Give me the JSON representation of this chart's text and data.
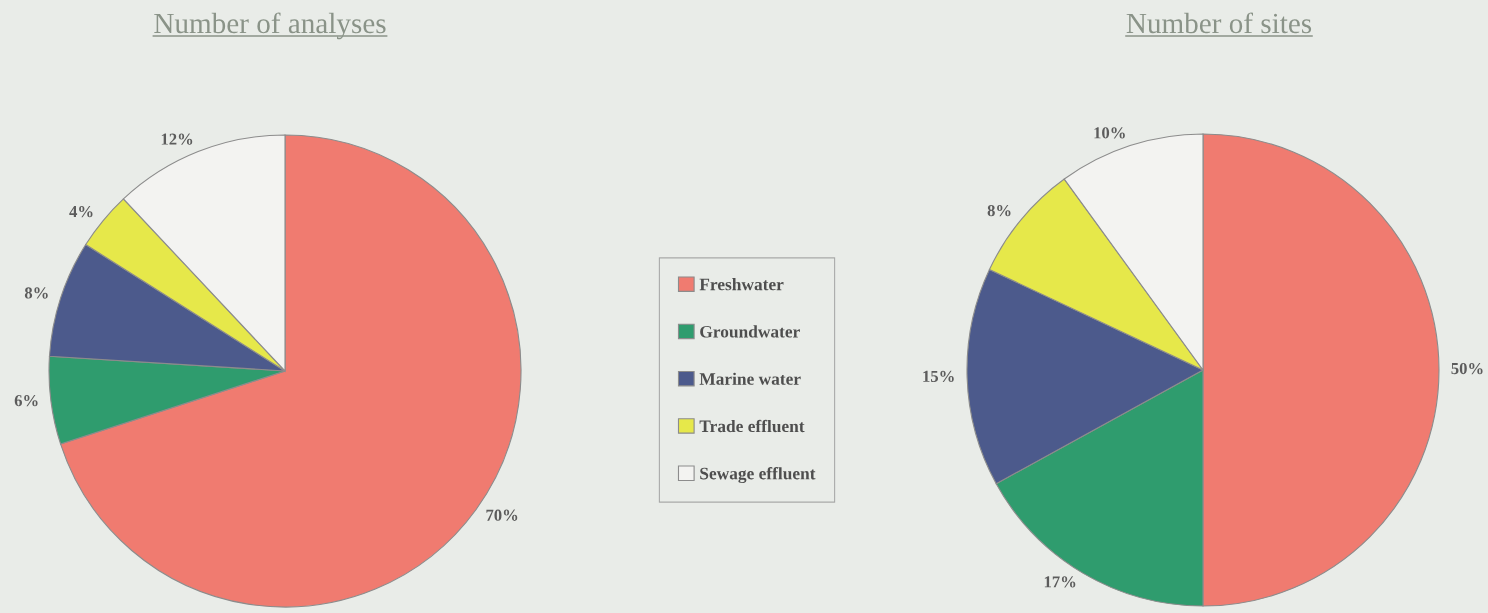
{
  "chart_data": [
    {
      "type": "pie",
      "title": "Number of analyses",
      "categories": [
        "Freshwater",
        "Groundwater",
        "Marine water",
        "Trade effluent",
        "Sewage effluent"
      ],
      "values": [
        70,
        6,
        8,
        4,
        12
      ],
      "colors": [
        "#f07b70",
        "#2f9c6e",
        "#4c5a8c",
        "#e6e84a",
        "#f3f3f1"
      ],
      "value_labels": [
        "70%",
        "6%",
        "8%",
        "4%",
        "12%"
      ],
      "legend": "right"
    },
    {
      "type": "pie",
      "title": "Number of sites",
      "categories": [
        null,
        null,
        null,
        null,
        null
      ],
      "values": [
        50,
        17,
        15,
        8,
        10
      ],
      "colors": [
        "#f07b70",
        "#2f9c6e",
        "#4c5a8c",
        "#e6e84a",
        "#f3f3f1"
      ],
      "value_labels": [
        "50%",
        "17%",
        "15%",
        "8%",
        "10%"
      ]
    }
  ]
}
